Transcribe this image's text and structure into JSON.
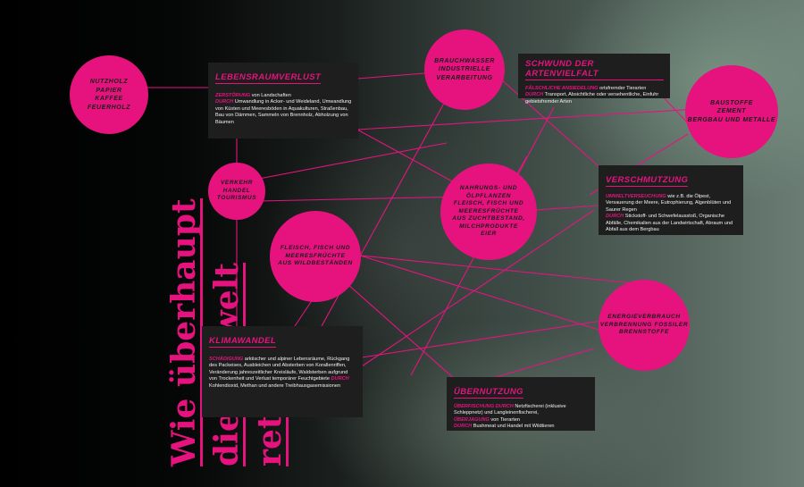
{
  "title": {
    "line1": "Wie überhaupt",
    "line2": "die Umwelt",
    "line3": "retten?"
  },
  "colors": {
    "accent": "#e6137f",
    "box_bg": "#1e1e1e",
    "text": "#f2f2f2"
  },
  "bubbles": {
    "nutzholz": "NUTZHOLZ\nPAPIER\nKAFFEE\nFEUERHOLZ",
    "brauchwasser": "BRAUCHWASSER\nINDUSTRIELLE\nVERARBEITUNG",
    "baustoffe": "BAUSTOFFE\nZEMENT\nBERGBAU UND METALLE",
    "verkehr": "VERKEHR\nHANDEL\nTOURISMUS",
    "nahrung": "NAHRUNGS- UND\nÖLPFLANZEN\nFLEISCH, FISCH UND\nMEERESFRÜCHTE\nAUS ZUCHTBESTAND,\nMILCHPRODUKTE\nEIER",
    "fleisch": "FLEISCH, FISCH UND\nMEERESFRÜCHTE\nAUS WILDBESTÄNDEN",
    "energie": "ENERGIEVERBRAUCH\nVERBRENNUNG FOSSILER\nBRENNSTOFFE"
  },
  "boxes": {
    "lebensraum": {
      "title": "LEBENSRAUMVERLUST",
      "k1": "Zerstörung",
      "t1": " von Landschaften",
      "k2": "durch",
      "t2": " Umwandlung in Acker- und Weideland, Umwandlung von Küsten und Meeresböden in Aquakulturen, Straßenbau, Bau von Dämmen, Sammeln von Brennholz, Abholzung von Bäumen"
    },
    "schwund": {
      "title": "SCHWUND DER ARTENVIELFALT",
      "k1": "Fälschliche Ansiedelung",
      "t1": " ortsfremder Tierarten",
      "k2": "durch",
      "t2": " Transport, Absichtliche oder versehentliche, Einfuhr gebietsfremder Arten"
    },
    "verschmutzung": {
      "title": "VERSCHMUTZUNG",
      "k1": "Umweltverseuchung",
      "t1": " wie z.B. die Ölpest, Versauerung der Meere, Eutrophierung, Algenblüten und Saurer Regen",
      "k2": "durch",
      "t2": " Stickstoff- und Schwefelausstoß, Organische Abfälle, Chemikalien aus der Landwirtschaft, Abraum und Abfall aus dem Bergbau"
    },
    "klimawandel": {
      "title": "KLIMAWANDEL",
      "k1": "Schädigung",
      "t1": " arktischer und alpiner Lebensräume, Rückgang des Packeises, Ausbleichen und Absterben von Korallenriffen, Veränderung jahreszeitlicher Kreisläufe, Waldsterben aufgrund von Trockenheit und Verlust temporärer Feuchtgebiete",
      "k2": "durch",
      "t2": " Kohlendioxid, Methan und andere Treibhausgasemissionen"
    },
    "uebernutzung": {
      "title": "ÜBERNUTZUNG",
      "k1": "Überfischung durch",
      "t1": " Netzfischerei (inklusive Schleppnetz) und Langleinenfischerei,",
      "k2": "Überjagung",
      "t2": " von Tierarten",
      "k3": "durch",
      "t3": " Bushmeat und Handel mit Wildtieren"
    }
  }
}
